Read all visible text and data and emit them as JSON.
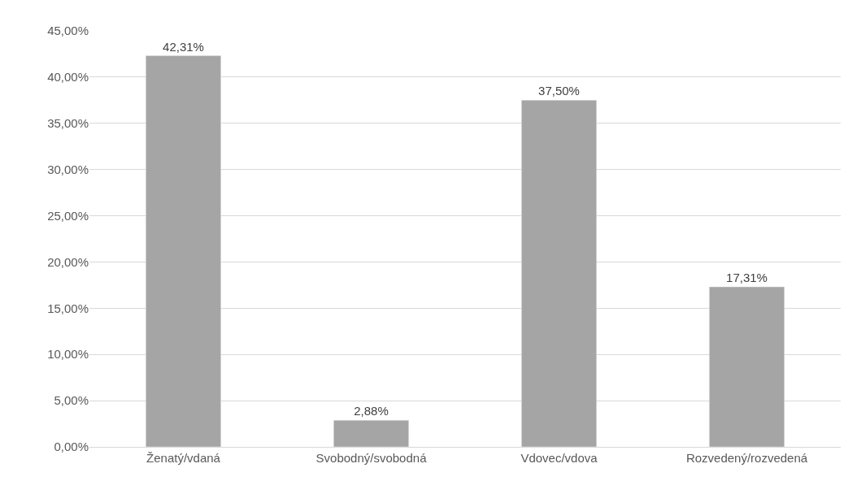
{
  "chart_data": {
    "type": "bar",
    "categories": [
      "Ženatý/vdaná",
      "Svobodný/svobodná",
      "Vdovec/vdova",
      "Rozvedený/rozvedená"
    ],
    "values": [
      42.31,
      2.88,
      37.5,
      17.31
    ],
    "value_labels": [
      "42,31%",
      "2,88%",
      "37,50%",
      "17,31%"
    ],
    "color": "#a5a5a5",
    "ylim": [
      0,
      45
    ],
    "yticks": [
      {
        "value": 0,
        "label": "0,00%"
      },
      {
        "value": 5,
        "label": "5,00%"
      },
      {
        "value": 10,
        "label": "10,00%"
      },
      {
        "value": 15,
        "label": "15,00%"
      },
      {
        "value": 20,
        "label": "20,00%"
      },
      {
        "value": 25,
        "label": "25,00%"
      },
      {
        "value": 30,
        "label": "30,00%"
      },
      {
        "value": 35,
        "label": "35,00%"
      },
      {
        "value": 40,
        "label": "40,00%"
      },
      {
        "value": 45,
        "label": "45,00%"
      }
    ],
    "grid": "y",
    "legend": false
  }
}
